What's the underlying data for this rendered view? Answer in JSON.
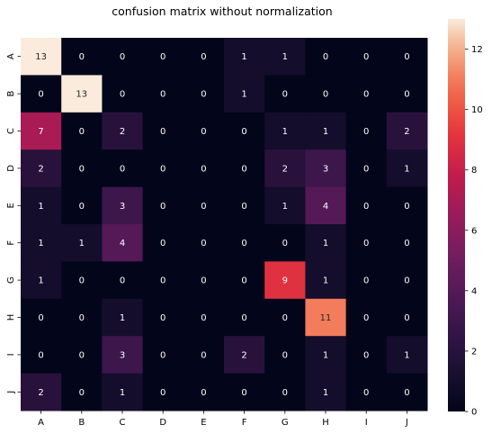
{
  "chart_data": {
    "type": "heatmap",
    "title": "confusion matrix without normalization",
    "x_categories": [
      "A",
      "B",
      "C",
      "D",
      "E",
      "F",
      "G",
      "H",
      "I",
      "J"
    ],
    "y_categories": [
      "A",
      "B",
      "C",
      "D",
      "E",
      "F",
      "G",
      "H",
      "I",
      "J"
    ],
    "values": [
      [
        13,
        0,
        0,
        0,
        0,
        1,
        1,
        0,
        0,
        0
      ],
      [
        0,
        13,
        0,
        0,
        0,
        1,
        0,
        0,
        0,
        0
      ],
      [
        7,
        0,
        2,
        0,
        0,
        0,
        1,
        1,
        0,
        2
      ],
      [
        2,
        0,
        0,
        0,
        0,
        0,
        2,
        3,
        0,
        1
      ],
      [
        1,
        0,
        3,
        0,
        0,
        0,
        1,
        4,
        0,
        0
      ],
      [
        1,
        1,
        4,
        0,
        0,
        0,
        0,
        1,
        0,
        0
      ],
      [
        1,
        0,
        0,
        0,
        0,
        0,
        9,
        1,
        0,
        0
      ],
      [
        0,
        0,
        1,
        0,
        0,
        0,
        0,
        11,
        0,
        0
      ],
      [
        0,
        0,
        3,
        0,
        0,
        2,
        0,
        1,
        0,
        1
      ],
      [
        2,
        0,
        1,
        0,
        0,
        0,
        0,
        1,
        0,
        0
      ]
    ],
    "colorbar": {
      "min": 0,
      "max": 13,
      "ticks": [
        0,
        2,
        4,
        6,
        8,
        10,
        12
      ],
      "colormap": "rocket"
    },
    "xlabel": "",
    "ylabel": ""
  }
}
